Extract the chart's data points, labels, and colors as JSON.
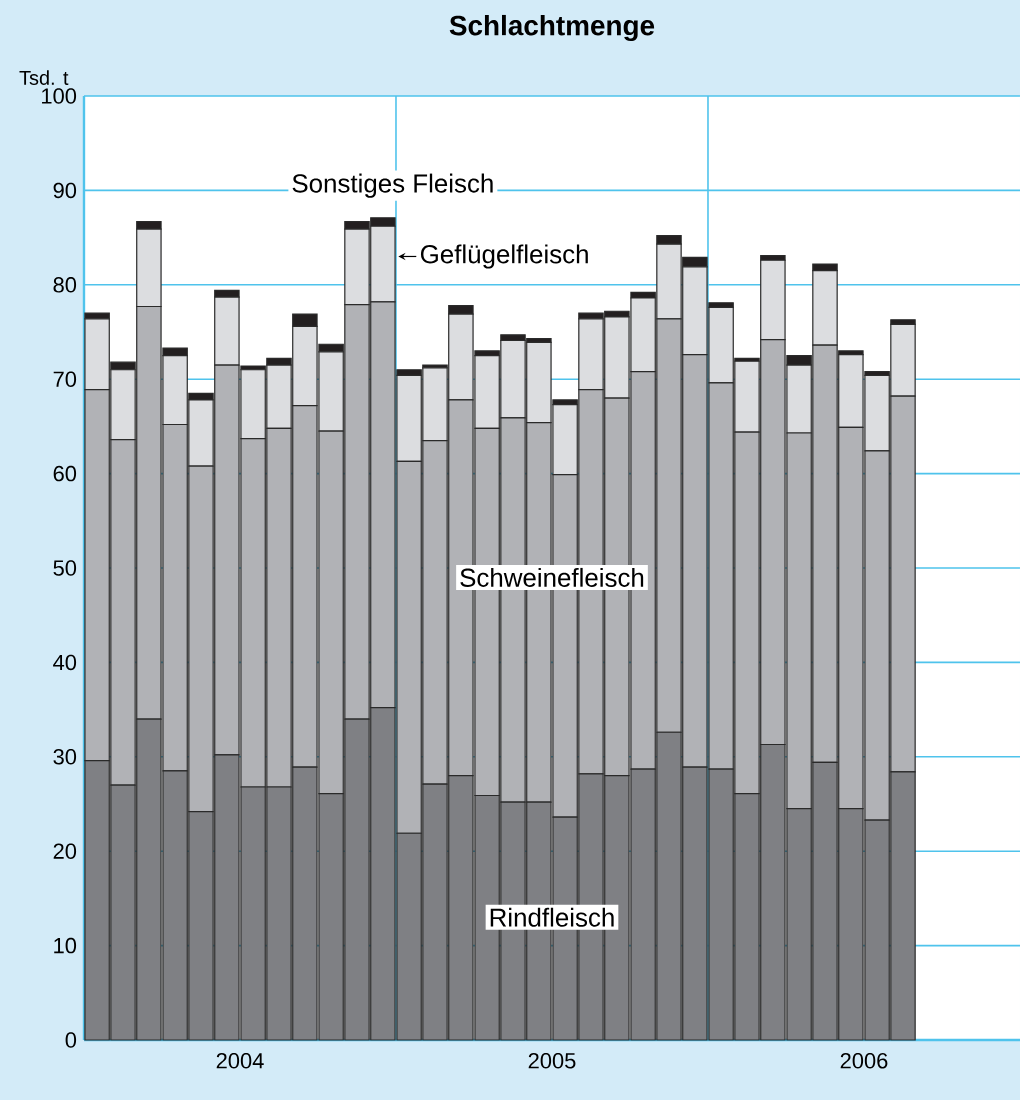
{
  "chart_data": {
    "type": "bar",
    "stacked": true,
    "title": "Schlachtmenge",
    "ylabel": "Tsd. t",
    "x": [
      2004.042,
      2004.125,
      2004.208,
      2004.292,
      2004.375,
      2004.458,
      2004.542,
      2004.625,
      2004.708,
      2004.792,
      2004.875,
      2004.958,
      2005.042,
      2005.125,
      2005.208,
      2005.292,
      2005.375,
      2005.458,
      2005.542,
      2005.625,
      2005.708,
      2005.792,
      2005.875,
      2005.958,
      2006.042,
      2006.125,
      2006.208,
      2006.292,
      2006.375,
      2006.458,
      2006.542,
      2006.625
    ],
    "series": [
      {
        "name": "Rindfleisch",
        "color": "#7f8084",
        "values": [
          29.6,
          27.0,
          34.0,
          28.5,
          24.2,
          30.2,
          26.8,
          26.8,
          28.9,
          26.1,
          34.0,
          35.2,
          21.9,
          27.1,
          28.0,
          25.9,
          25.2,
          25.2,
          23.6,
          28.2,
          28.0,
          28.7,
          32.6,
          28.9,
          28.7,
          26.1,
          31.3,
          24.5,
          29.4,
          24.5,
          23.3,
          28.4
        ]
      },
      {
        "name": "Schweinefleisch",
        "color": "#b1b2b6",
        "values": [
          39.3,
          36.6,
          43.7,
          36.7,
          36.6,
          41.3,
          36.9,
          38.0,
          38.3,
          38.4,
          43.9,
          43.0,
          39.4,
          36.4,
          39.8,
          38.9,
          40.7,
          40.2,
          36.3,
          40.7,
          40.0,
          42.1,
          43.8,
          43.7,
          40.9,
          38.3,
          42.9,
          39.8,
          44.2,
          40.4,
          39.1,
          39.8
        ]
      },
      {
        "name": "Geflügelfleisch",
        "color": "#dcdde0",
        "values": [
          7.5,
          7.4,
          8.2,
          7.3,
          7.0,
          7.2,
          7.3,
          6.7,
          8.4,
          8.4,
          8.0,
          8.0,
          9.1,
          7.7,
          9.1,
          7.7,
          8.2,
          8.5,
          7.4,
          7.5,
          8.6,
          7.8,
          7.9,
          9.3,
          8.0,
          7.5,
          8.4,
          7.2,
          7.9,
          7.7,
          8.0,
          7.6
        ]
      },
      {
        "name": "Sonstiges Fleisch",
        "color": "#231f20",
        "values": [
          0.6,
          0.8,
          0.8,
          0.8,
          0.7,
          0.7,
          0.4,
          0.7,
          1.3,
          0.8,
          0.8,
          0.9,
          0.6,
          0.3,
          0.9,
          0.5,
          0.6,
          0.4,
          0.5,
          0.6,
          0.6,
          0.6,
          0.9,
          1.0,
          0.5,
          0.3,
          0.5,
          1.0,
          0.7,
          0.4,
          0.4,
          0.5
        ]
      }
    ],
    "xlim": [
      2004,
      2007
    ],
    "xticks": [
      {
        "value": 2004.5,
        "label": "2004"
      },
      {
        "value": 2005.5,
        "label": "2005"
      },
      {
        "value": 2006.5,
        "label": "2006"
      }
    ],
    "ylim": [
      0,
      100
    ],
    "yticks": [
      0,
      10,
      20,
      30,
      40,
      50,
      60,
      70,
      80,
      90,
      100
    ],
    "grid": "y",
    "legend": false,
    "ref_lines": [
      {
        "axis": "x",
        "value": 2005,
        "color": "#4fc3ec"
      },
      {
        "axis": "x",
        "value": 2006,
        "color": "#4fc3ec"
      }
    ]
  }
}
